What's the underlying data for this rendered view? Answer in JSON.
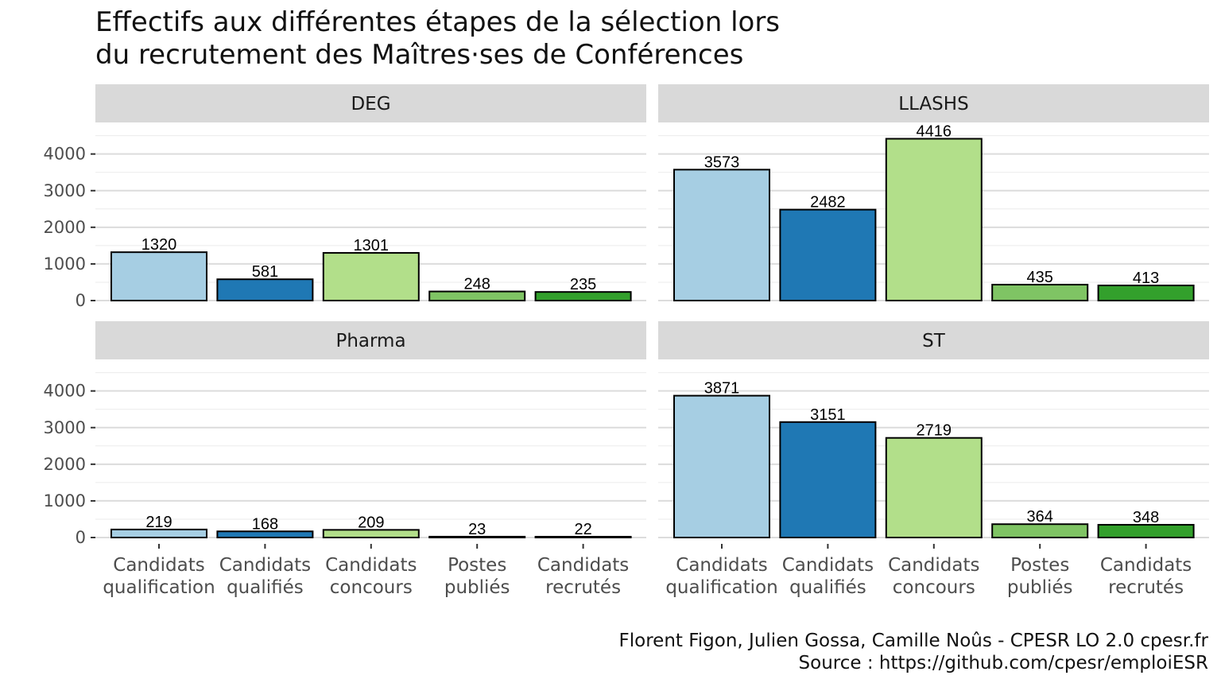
{
  "title": {
    "line1": "Effectifs aux différentes étapes de la sélection lors",
    "line2": "du recrutement des Maîtres·ses de Conférences"
  },
  "caption": {
    "line1": "Florent Figon, Julien Gossa, Camille Noûs - CPESR LO 2.0 cpesr.fr",
    "line2": "Source : https://github.com/cpesr/emploiESR"
  },
  "chart_data": {
    "type": "bar",
    "title": "Effectifs aux différentes étapes de la sélection lors du recrutement des Maîtres·ses de Conférences",
    "xlabel": "",
    "ylabel": "",
    "ylim": [
      0,
      4600
    ],
    "yticks": [
      0,
      1000,
      2000,
      3000,
      4000
    ],
    "ytick_labels": [
      "0",
      "1000",
      "2000",
      "3000",
      "4000"
    ],
    "grid": true,
    "legend": "none",
    "categories": [
      [
        "Candidats",
        "qualification"
      ],
      [
        "Candidats",
        "qualifiés"
      ],
      [
        "Candidats",
        "concours"
      ],
      [
        "Postes",
        "publiés"
      ],
      [
        "Candidats",
        "recrutés"
      ]
    ],
    "colors": [
      "#a6cee3",
      "#1f78b4",
      "#b2df8a",
      "#7fc464",
      "#33a02c"
    ],
    "panels": [
      {
        "name": "DEG",
        "values": [
          1320,
          581,
          1301,
          248,
          235
        ]
      },
      {
        "name": "LLASHS",
        "values": [
          3573,
          2482,
          4416,
          435,
          413
        ]
      },
      {
        "name": "Pharma",
        "values": [
          219,
          168,
          209,
          23,
          22
        ]
      },
      {
        "name": "ST",
        "values": [
          3871,
          3151,
          2719,
          364,
          348
        ]
      }
    ]
  }
}
